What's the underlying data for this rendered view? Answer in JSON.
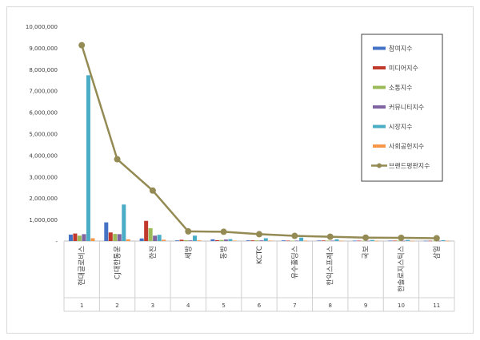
{
  "chart_data": {
    "type": "bar",
    "title": "",
    "xlabel": "",
    "ylabel": "",
    "ylim": [
      0,
      10000000
    ],
    "yticks": [
      0,
      1000000,
      2000000,
      3000000,
      4000000,
      5000000,
      6000000,
      7000000,
      8000000,
      9000000,
      10000000
    ],
    "ytick_labels": [
      "-",
      "1,000,000",
      "2,000,000",
      "3,000,000",
      "4,000,000",
      "5,000,000",
      "6,000,000",
      "7,000,000",
      "8,000,000",
      "9,000,000",
      "10,000,000"
    ],
    "categories": [
      "현대글로비스",
      "CJ대한통운",
      "한진",
      "세방",
      "동방",
      "KCTC",
      "유수홀딩스",
      "한익스프레스",
      "국보",
      "한솔로지스틱스",
      "삼일"
    ],
    "ranks": [
      "1",
      "2",
      "3",
      "4",
      "5",
      "6",
      "7",
      "8",
      "9",
      "10",
      "11"
    ],
    "grid": false,
    "legend_position": "top-right",
    "series": [
      {
        "name": "참여지수",
        "type": "bar",
        "color": "#4472c4",
        "values": [
          300000,
          870000,
          120000,
          30000,
          80000,
          30000,
          30000,
          25000,
          20000,
          20000,
          15000
        ]
      },
      {
        "name": "미디어지수",
        "type": "bar",
        "color": "#c0392b",
        "values": [
          350000,
          400000,
          940000,
          60000,
          40000,
          30000,
          20000,
          25000,
          20000,
          20000,
          15000
        ]
      },
      {
        "name": "소통지수",
        "type": "bar",
        "color": "#9bbb59",
        "values": [
          250000,
          330000,
          600000,
          40000,
          50000,
          30000,
          15000,
          20000,
          15000,
          20000,
          15000
        ]
      },
      {
        "name": "커뮤니티지수",
        "type": "bar",
        "color": "#8064a2",
        "values": [
          320000,
          320000,
          250000,
          30000,
          70000,
          30000,
          20000,
          20000,
          15000,
          15000,
          10000
        ]
      },
      {
        "name": "시장지수",
        "type": "bar",
        "color": "#4bacc6",
        "values": [
          7720000,
          1700000,
          290000,
          250000,
          90000,
          130000,
          160000,
          80000,
          50000,
          50000,
          40000
        ]
      },
      {
        "name": "사회공헌지수",
        "type": "bar",
        "color": "#f79646",
        "values": [
          130000,
          80000,
          60000,
          30000,
          20000,
          20000,
          15000,
          15000,
          10000,
          10000,
          10000
        ]
      },
      {
        "name": "브랜드평판지수",
        "type": "line",
        "color": "#948a54",
        "values": [
          9120000,
          3810000,
          2350000,
          450000,
          430000,
          320000,
          240000,
          200000,
          160000,
          150000,
          130000
        ]
      }
    ]
  }
}
